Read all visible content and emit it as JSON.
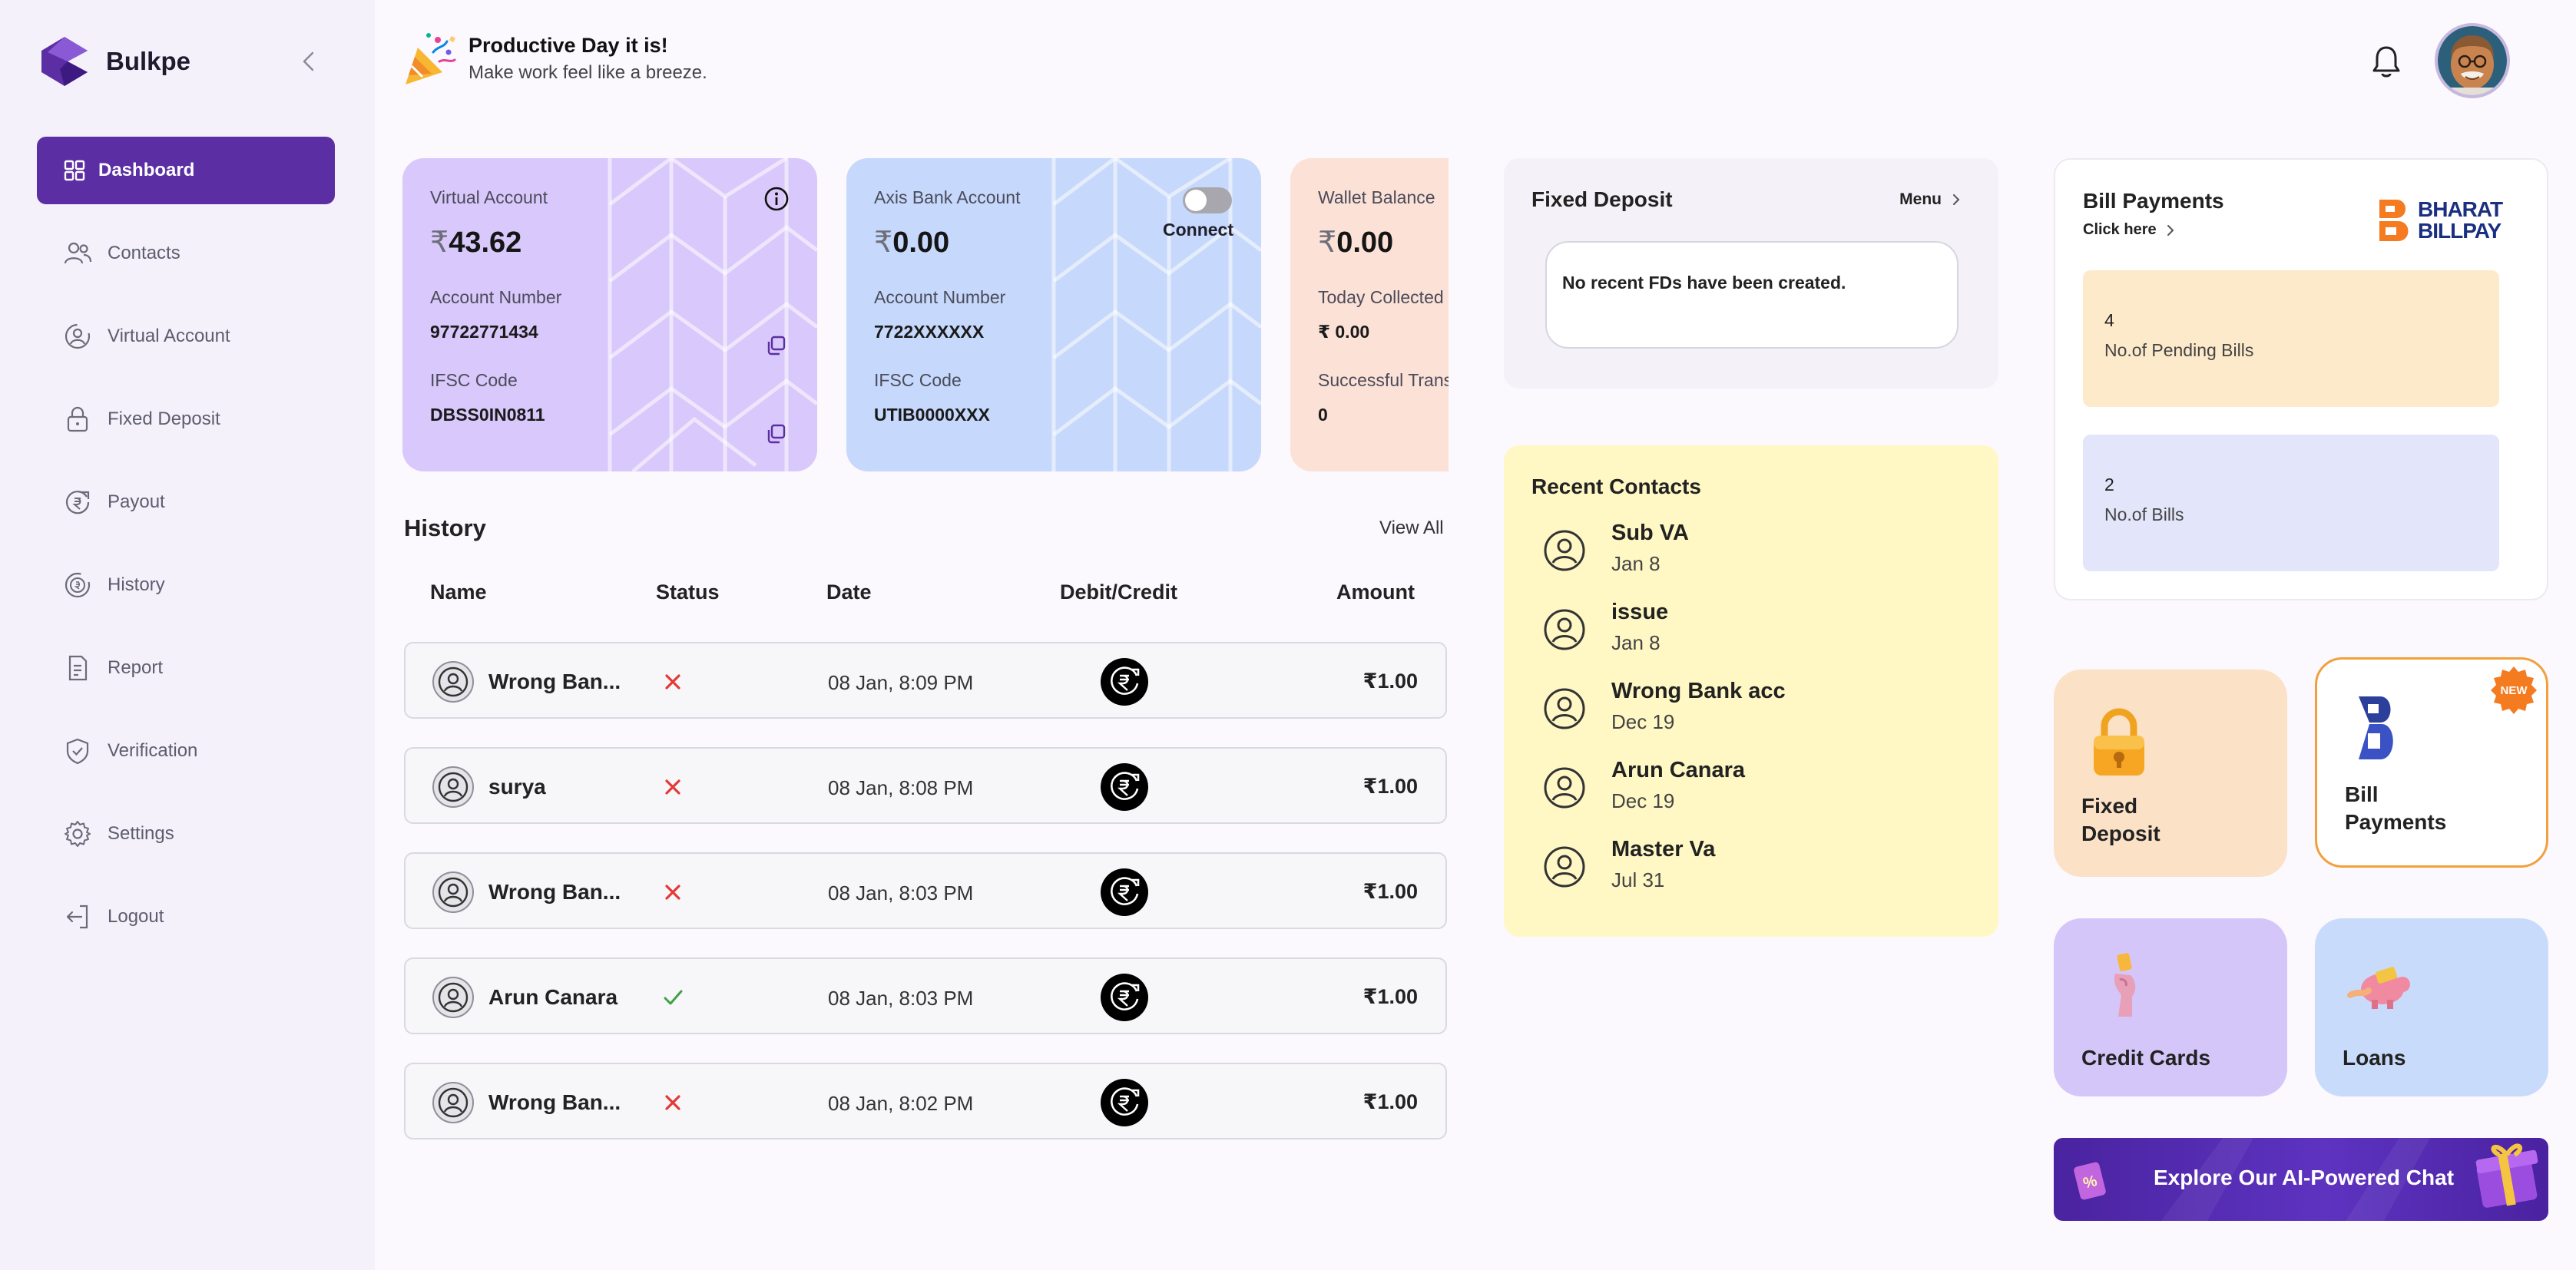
{
  "brand": {
    "name": "Bulkpe"
  },
  "sidebar": {
    "items": [
      {
        "label": "Dashboard",
        "icon": "grid-icon",
        "active": true
      },
      {
        "label": "Contacts",
        "icon": "users-icon"
      },
      {
        "label": "Virtual Account",
        "icon": "virtual-account-icon"
      },
      {
        "label": "Fixed Deposit",
        "icon": "lock-icon"
      },
      {
        "label": "Payout",
        "icon": "payout-icon"
      },
      {
        "label": "History",
        "icon": "history-icon"
      },
      {
        "label": "Report",
        "icon": "report-icon"
      },
      {
        "label": "Verification",
        "icon": "shield-check-icon"
      },
      {
        "label": "Settings",
        "icon": "gear-icon"
      },
      {
        "label": "Logout",
        "icon": "logout-icon"
      }
    ]
  },
  "header": {
    "greeting_title": "Productive Day it is!",
    "greeting_sub": "Make work feel like a breeze."
  },
  "cards": {
    "virtual": {
      "label": "Virtual Account",
      "currency": "₹",
      "balance": "43.62",
      "account_label": "Account Number",
      "account_number": "97722771434",
      "ifsc_label": "IFSC Code",
      "ifsc": "DBSS0IN0811"
    },
    "axis": {
      "label": "Axis Bank Account",
      "currency": "₹",
      "balance": "0.00",
      "connect_label": "Connect",
      "account_label": "Account Number",
      "account_number": "7722XXXXXX",
      "ifsc_label": "IFSC Code",
      "ifsc": "UTIB0000XXX"
    },
    "wallet": {
      "label": "Wallet Balance",
      "currency": "₹",
      "balance": "0.00",
      "today_label": "Today Collected",
      "today_value": "₹ 0.00",
      "success_label": "Successful Transactions",
      "success_value": "0"
    }
  },
  "history": {
    "title": "History",
    "view_all": "View All",
    "columns": [
      "Name",
      "Status",
      "Date",
      "Debit/Credit",
      "Amount"
    ],
    "rows": [
      {
        "name": "Wrong Ban...",
        "status": "failed",
        "date": "08 Jan, 8:09 PM",
        "amount": "₹1.00"
      },
      {
        "name": "surya",
        "status": "failed",
        "date": "08 Jan, 8:08 PM",
        "amount": "₹1.00"
      },
      {
        "name": "Wrong Ban...",
        "status": "failed",
        "date": "08 Jan, 8:03 PM",
        "amount": "₹1.00"
      },
      {
        "name": "Arun Canara",
        "status": "success",
        "date": "08 Jan, 8:03 PM",
        "amount": "₹1.00"
      },
      {
        "name": "Wrong Ban...",
        "status": "failed",
        "date": "08 Jan, 8:02 PM",
        "amount": "₹1.00"
      }
    ]
  },
  "fixed_deposit": {
    "title": "Fixed Deposit",
    "menu_label": "Menu",
    "empty_message": "No recent FDs have been created."
  },
  "recent_contacts": {
    "title": "Recent Contacts",
    "items": [
      {
        "name": "Sub VA",
        "date": "Jan 8"
      },
      {
        "name": "issue",
        "date": "Jan 8"
      },
      {
        "name": "Wrong Bank acc",
        "date": "Dec 19"
      },
      {
        "name": "Arun Canara",
        "date": "Dec 19"
      },
      {
        "name": "Master Va",
        "date": "Jul 31"
      }
    ]
  },
  "bill_payments": {
    "title": "Bill Payments",
    "click_here": "Click here",
    "logo_line1": "BHARAT",
    "logo_line2": "BILLPAY",
    "pending_count": "4",
    "pending_label": "No.of Pending Bills",
    "bills_count": "2",
    "bills_label": "No.of Bills"
  },
  "tiles": {
    "fixed_deposit": {
      "line1": "Fixed",
      "line2": "Deposit"
    },
    "bill_payments": {
      "line1": "Bill",
      "line2": "Payments",
      "badge": "NEW"
    },
    "credit_cards": {
      "label": "Credit Cards"
    },
    "loans": {
      "label": "Loans"
    }
  },
  "ai_banner": {
    "label": "Explore Our AI-Powered Chat"
  },
  "colors": {
    "accent": "#5b2fa3",
    "sidebar_bg": "#f5f1fb",
    "virtual_card": "#d9c8fb",
    "axis_card": "#c6d8fb",
    "wallet_card": "#fce1d7",
    "recent_contacts_bg": "#fff8c5",
    "pending_bills_bg": "#fdeacb",
    "bills_bg": "#e3e6fa",
    "failed": "#e53935",
    "success": "#43a047"
  }
}
